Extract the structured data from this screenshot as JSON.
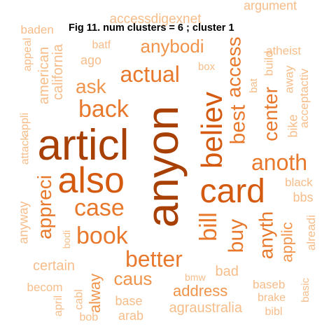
{
  "title": "Fig 11. num clusters  =  6 ; cluster 1",
  "words": [
    {
      "text": "anyon",
      "color": "#a84004"
    },
    {
      "text": "articl",
      "color": "#a84004"
    },
    {
      "text": "also",
      "color": "#d45a10"
    },
    {
      "text": "card",
      "color": "#d45a10"
    },
    {
      "text": "believ",
      "color": "#d45a10"
    },
    {
      "text": "actual",
      "color": "#e8782c"
    },
    {
      "text": "back",
      "color": "#e8782c"
    },
    {
      "text": "case",
      "color": "#e8782c"
    },
    {
      "text": "book",
      "color": "#e8782c"
    },
    {
      "text": "bill",
      "color": "#e8782c"
    },
    {
      "text": "best",
      "color": "#e8782c"
    },
    {
      "text": "access",
      "color": "#e8782c"
    },
    {
      "text": "anoth",
      "color": "#e8782c"
    },
    {
      "text": "center",
      "color": "#e8782c"
    },
    {
      "text": "buy",
      "color": "#e8782c"
    },
    {
      "text": "better",
      "color": "#e8782c"
    },
    {
      "text": "appreci",
      "color": "#e8782c"
    },
    {
      "text": "anyth",
      "color": "#e8782c"
    },
    {
      "text": "anybodi",
      "color": "#f0944c"
    },
    {
      "text": "ask",
      "color": "#f0944c"
    },
    {
      "text": "caus",
      "color": "#f0944c"
    },
    {
      "text": "applic",
      "color": "#f0944c"
    },
    {
      "text": "alway",
      "color": "#f0944c"
    },
    {
      "text": "address",
      "color": "#f0944c"
    },
    {
      "text": "agraustralia",
      "color": "#f6bd8a"
    },
    {
      "text": "accessdigexnet",
      "color": "#f6bd8a"
    },
    {
      "text": "argument",
      "color": "#f6bd8a"
    },
    {
      "text": "baden",
      "color": "#f6bd8a"
    },
    {
      "text": "batf",
      "color": "#f6bd8a"
    },
    {
      "text": "ago",
      "color": "#f6bd8a"
    },
    {
      "text": "atheist",
      "color": "#f6bd8a"
    },
    {
      "text": "box",
      "color": "#f6bd8a"
    },
    {
      "text": "american",
      "color": "#f6bd8a"
    },
    {
      "text": "california",
      "color": "#f6bd8a"
    },
    {
      "text": "appeal",
      "color": "#f6bd8a"
    },
    {
      "text": "bat",
      "color": "#f6bd8a"
    },
    {
      "text": "build",
      "color": "#f6bd8a"
    },
    {
      "text": "away",
      "color": "#f6bd8a"
    },
    {
      "text": "acceptactiv",
      "color": "#f6bd8a"
    },
    {
      "text": "attack",
      "color": "#f6bd8a"
    },
    {
      "text": "appli",
      "color": "#f6bd8a"
    },
    {
      "text": "bike",
      "color": "#f6bd8a"
    },
    {
      "text": "black",
      "color": "#f6bd8a"
    },
    {
      "text": "bbs",
      "color": "#f6bd8a"
    },
    {
      "text": "anyway",
      "color": "#f6bd8a"
    },
    {
      "text": "bodi",
      "color": "#f6bd8a"
    },
    {
      "text": "alreadi",
      "color": "#f6bd8a"
    },
    {
      "text": "certain",
      "color": "#f6bd8a"
    },
    {
      "text": "bad",
      "color": "#f6bd8a"
    },
    {
      "text": "bmw",
      "color": "#f6bd8a"
    },
    {
      "text": "becom",
      "color": "#f6bd8a"
    },
    {
      "text": "baseb",
      "color": "#f6bd8a"
    },
    {
      "text": "basic",
      "color": "#f6bd8a"
    },
    {
      "text": "april",
      "color": "#f6bd8a"
    },
    {
      "text": "cabl",
      "color": "#f6bd8a"
    },
    {
      "text": "base",
      "color": "#f6bd8a"
    },
    {
      "text": "brake",
      "color": "#f6bd8a"
    },
    {
      "text": "bob",
      "color": "#f6bd8a"
    },
    {
      "text": "arab",
      "color": "#f6bd8a"
    },
    {
      "text": "bibl",
      "color": "#f6bd8a"
    }
  ]
}
